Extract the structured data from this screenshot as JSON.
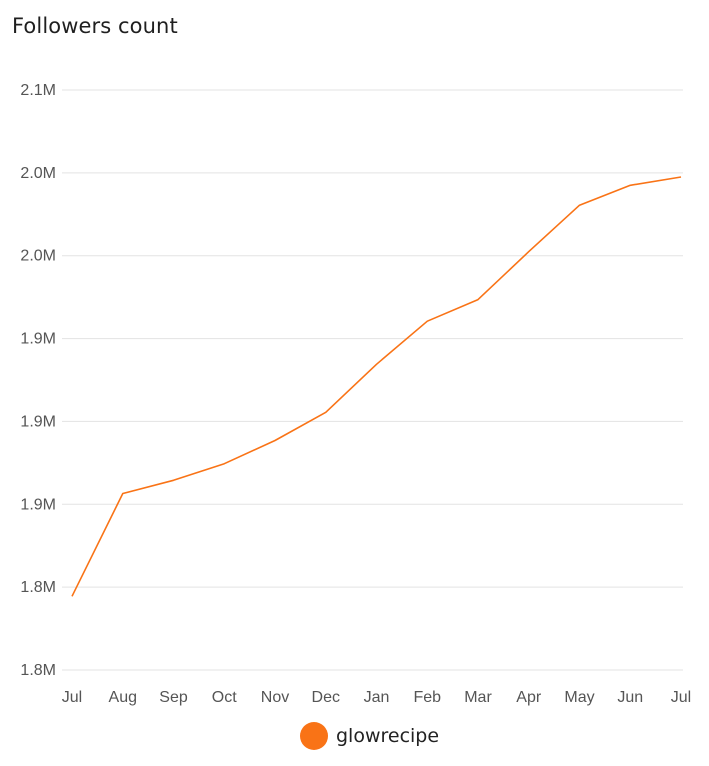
{
  "chart_data": {
    "type": "line",
    "title": "Followers count",
    "x": [
      "Jul",
      "Aug",
      "Sep",
      "Oct",
      "Nov",
      "Dec",
      "Jan",
      "Feb",
      "Mar",
      "Apr",
      "May",
      "Jun",
      "Jul"
    ],
    "series": [
      {
        "name": "glowrecipe",
        "color": "#f97316",
        "values": [
          1.7945,
          1.8565,
          1.8645,
          1.8745,
          1.8885,
          1.9055,
          1.9345,
          1.9605,
          1.9735,
          2.0025,
          2.0305,
          2.0425,
          2.0475
        ]
      }
    ],
    "y_ticks": [
      {
        "value": 1.75,
        "label": "1.8M"
      },
      {
        "value": 1.8,
        "label": "1.8M"
      },
      {
        "value": 1.85,
        "label": "1.9M"
      },
      {
        "value": 1.9,
        "label": "1.9M"
      },
      {
        "value": 1.95,
        "label": "1.9M"
      },
      {
        "value": 2.0,
        "label": "2.0M"
      },
      {
        "value": 2.05,
        "label": "2.0M"
      },
      {
        "value": 2.1,
        "label": "2.1M"
      }
    ],
    "ylim": [
      1.75,
      2.1
    ],
    "xlabel": "",
    "ylabel": "",
    "grid": true,
    "legend_position": "bottom-center"
  }
}
